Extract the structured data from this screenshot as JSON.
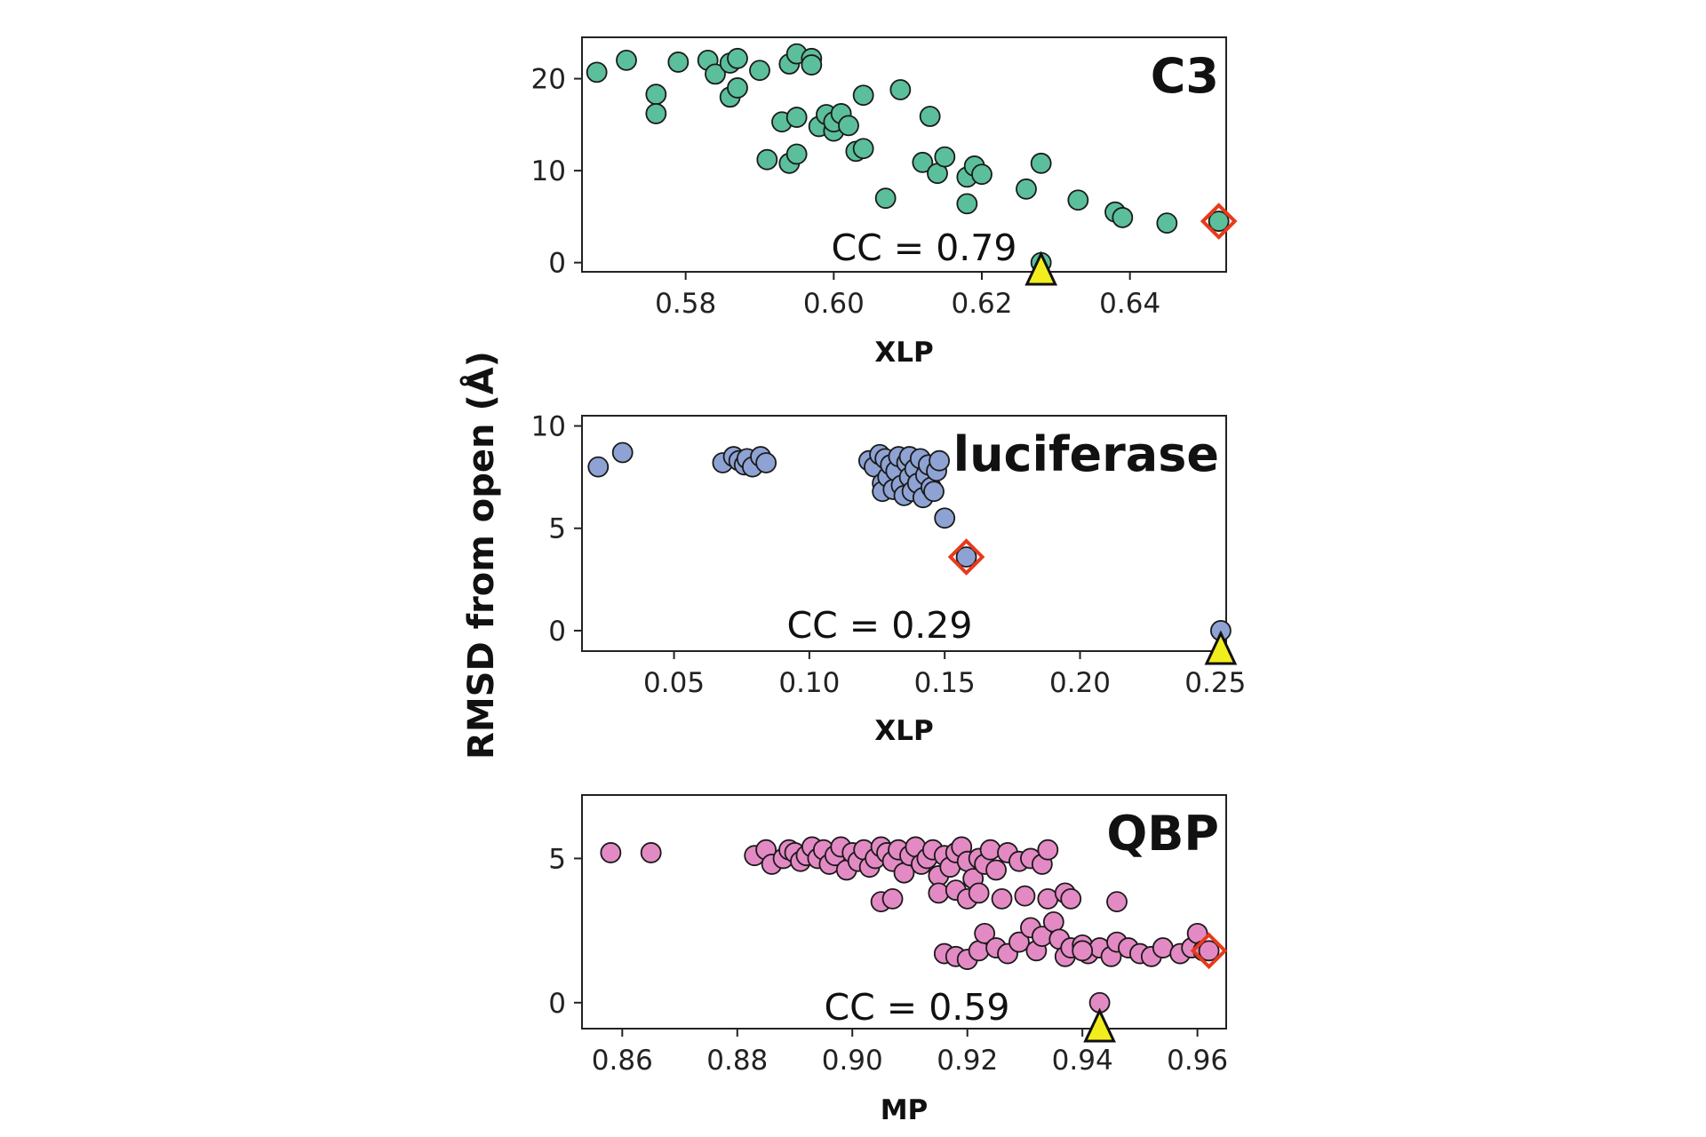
{
  "figure": {
    "ylabel": "RMSD from open (Å)",
    "colors": {
      "c3": "#5bbf9c",
      "luciferase": "#8ea3d3",
      "qbp": "#e38ac4",
      "marker_outline": "#1a1a1a",
      "diamond": "#e8391c",
      "triangle": "#f2ee1e"
    }
  },
  "chart_data": [
    {
      "type": "scatter",
      "panel_label": "C3",
      "annotation": "CC = 0.79",
      "xlabel": "XLP",
      "xlim": [
        0.566,
        0.653
      ],
      "ylim": [
        -1,
        24.5
      ],
      "xticks": [
        0.58,
        0.6,
        0.62,
        0.64
      ],
      "xtick_labels": [
        "0.58",
        "0.60",
        "0.62",
        "0.64"
      ],
      "yticks": [
        0,
        10,
        20
      ],
      "ytick_labels": [
        "0",
        "10",
        "20"
      ],
      "color": "#5bbf9c",
      "points": [
        [
          0.568,
          20.7
        ],
        [
          0.572,
          22.0
        ],
        [
          0.576,
          18.3
        ],
        [
          0.576,
          16.2
        ],
        [
          0.579,
          21.8
        ],
        [
          0.583,
          22.0
        ],
        [
          0.584,
          20.5
        ],
        [
          0.586,
          21.7
        ],
        [
          0.587,
          22.2
        ],
        [
          0.586,
          18.0
        ],
        [
          0.587,
          19.0
        ],
        [
          0.59,
          20.9
        ],
        [
          0.591,
          11.2
        ],
        [
          0.593,
          15.3
        ],
        [
          0.594,
          10.8
        ],
        [
          0.594,
          21.6
        ],
        [
          0.595,
          22.7
        ],
        [
          0.595,
          11.8
        ],
        [
          0.595,
          15.8
        ],
        [
          0.597,
          22.2
        ],
        [
          0.597,
          21.5
        ],
        [
          0.598,
          14.8
        ],
        [
          0.599,
          16.1
        ],
        [
          0.6,
          14.3
        ],
        [
          0.6,
          15.3
        ],
        [
          0.601,
          16.2
        ],
        [
          0.602,
          14.9
        ],
        [
          0.603,
          12.1
        ],
        [
          0.604,
          12.4
        ],
        [
          0.604,
          18.2
        ],
        [
          0.607,
          7.0
        ],
        [
          0.609,
          18.8
        ],
        [
          0.612,
          10.9
        ],
        [
          0.613,
          15.9
        ],
        [
          0.614,
          9.7
        ],
        [
          0.615,
          11.5
        ],
        [
          0.618,
          6.4
        ],
        [
          0.618,
          9.3
        ],
        [
          0.619,
          10.5
        ],
        [
          0.62,
          9.6
        ],
        [
          0.626,
          8.0
        ],
        [
          0.628,
          10.8
        ],
        [
          0.633,
          6.8
        ],
        [
          0.638,
          5.5
        ],
        [
          0.639,
          4.9
        ],
        [
          0.645,
          4.3
        ],
        [
          0.652,
          4.5
        ],
        [
          0.628,
          0.0
        ]
      ],
      "best_diamond": [
        0.652,
        4.5
      ],
      "reference_triangle_x": 0.628
    },
    {
      "type": "scatter",
      "panel_label": "luciferase",
      "annotation": "CC = 0.29",
      "xlabel": "XLP",
      "xlim": [
        0.016,
        0.254
      ],
      "ylim": [
        -1,
        10.5
      ],
      "xticks": [
        0.05,
        0.1,
        0.15,
        0.2,
        0.25
      ],
      "xtick_labels": [
        "0.05",
        "0.10",
        "0.15",
        "0.20",
        "0.25"
      ],
      "yticks": [
        0,
        5,
        10
      ],
      "ytick_labels": [
        "0",
        "5",
        "10"
      ],
      "color": "#8ea3d3",
      "points": [
        [
          0.022,
          8.0
        ],
        [
          0.031,
          8.7
        ],
        [
          0.068,
          8.2
        ],
        [
          0.072,
          8.5
        ],
        [
          0.074,
          8.3
        ],
        [
          0.076,
          8.1
        ],
        [
          0.077,
          8.4
        ],
        [
          0.079,
          8.0
        ],
        [
          0.082,
          8.5
        ],
        [
          0.084,
          8.2
        ],
        [
          0.122,
          8.3
        ],
        [
          0.124,
          8.0
        ],
        [
          0.126,
          8.6
        ],
        [
          0.127,
          7.2
        ],
        [
          0.127,
          6.8
        ],
        [
          0.128,
          8.4
        ],
        [
          0.129,
          7.5
        ],
        [
          0.13,
          8.1
        ],
        [
          0.131,
          6.9
        ],
        [
          0.132,
          7.8
        ],
        [
          0.133,
          8.5
        ],
        [
          0.134,
          7.1
        ],
        [
          0.135,
          6.6
        ],
        [
          0.136,
          8.2
        ],
        [
          0.137,
          7.5
        ],
        [
          0.137,
          8.5
        ],
        [
          0.138,
          6.8
        ],
        [
          0.139,
          7.9
        ],
        [
          0.14,
          7.2
        ],
        [
          0.141,
          8.4
        ],
        [
          0.142,
          6.5
        ],
        [
          0.143,
          7.6
        ],
        [
          0.144,
          8.1
        ],
        [
          0.145,
          7.0
        ],
        [
          0.146,
          6.8
        ],
        [
          0.147,
          7.8
        ],
        [
          0.148,
          8.3
        ],
        [
          0.15,
          5.5
        ],
        [
          0.158,
          3.6
        ],
        [
          0.252,
          0.0
        ]
      ],
      "best_diamond": [
        0.158,
        3.6
      ],
      "reference_triangle_x": 0.252
    },
    {
      "type": "scatter",
      "panel_label": "QBP",
      "annotation": "CC = 0.59",
      "xlabel": "MP",
      "xlim": [
        0.853,
        0.965
      ],
      "ylim": [
        -0.9,
        7.2
      ],
      "xticks": [
        0.86,
        0.88,
        0.9,
        0.92,
        0.94,
        0.96
      ],
      "xtick_labels": [
        "0.86",
        "0.88",
        "0.90",
        "0.92",
        "0.94",
        "0.96"
      ],
      "yticks": [
        0,
        5
      ],
      "ytick_labels": [
        "0",
        "5"
      ],
      "color": "#e38ac4",
      "points": [
        [
          0.858,
          5.2
        ],
        [
          0.865,
          5.2
        ],
        [
          0.883,
          5.1
        ],
        [
          0.885,
          5.3
        ],
        [
          0.886,
          4.8
        ],
        [
          0.888,
          5.0
        ],
        [
          0.889,
          5.3
        ],
        [
          0.89,
          5.2
        ],
        [
          0.891,
          4.9
        ],
        [
          0.892,
          5.1
        ],
        [
          0.893,
          5.4
        ],
        [
          0.894,
          5.0
        ],
        [
          0.895,
          5.3
        ],
        [
          0.896,
          4.8
        ],
        [
          0.897,
          5.1
        ],
        [
          0.898,
          5.4
        ],
        [
          0.899,
          4.6
        ],
        [
          0.9,
          5.2
        ],
        [
          0.901,
          4.9
        ],
        [
          0.902,
          5.3
        ],
        [
          0.903,
          4.7
        ],
        [
          0.904,
          5.0
        ],
        [
          0.905,
          5.4
        ],
        [
          0.906,
          5.2
        ],
        [
          0.907,
          4.9
        ],
        [
          0.908,
          5.3
        ],
        [
          0.909,
          4.5
        ],
        [
          0.91,
          5.1
        ],
        [
          0.911,
          5.4
        ],
        [
          0.912,
          4.8
        ],
        [
          0.913,
          5.0
        ],
        [
          0.914,
          5.3
        ],
        [
          0.915,
          4.4
        ],
        [
          0.916,
          5.1
        ],
        [
          0.917,
          4.7
        ],
        [
          0.918,
          5.2
        ],
        [
          0.919,
          5.4
        ],
        [
          0.92,
          4.9
        ],
        [
          0.921,
          4.3
        ],
        [
          0.922,
          5.0
        ],
        [
          0.923,
          4.8
        ],
        [
          0.924,
          5.3
        ],
        [
          0.925,
          4.6
        ],
        [
          0.927,
          5.2
        ],
        [
          0.929,
          4.9
        ],
        [
          0.931,
          5.0
        ],
        [
          0.933,
          4.8
        ],
        [
          0.934,
          5.3
        ],
        [
          0.905,
          3.5
        ],
        [
          0.907,
          3.6
        ],
        [
          0.915,
          3.8
        ],
        [
          0.918,
          3.9
        ],
        [
          0.92,
          3.6
        ],
        [
          0.922,
          3.8
        ],
        [
          0.926,
          3.6
        ],
        [
          0.93,
          3.7
        ],
        [
          0.934,
          3.6
        ],
        [
          0.937,
          3.8
        ],
        [
          0.938,
          3.6
        ],
        [
          0.946,
          3.5
        ],
        [
          0.916,
          1.7
        ],
        [
          0.918,
          1.6
        ],
        [
          0.92,
          1.5
        ],
        [
          0.922,
          1.8
        ],
        [
          0.923,
          2.4
        ],
        [
          0.925,
          1.9
        ],
        [
          0.927,
          1.7
        ],
        [
          0.929,
          2.1
        ],
        [
          0.931,
          2.6
        ],
        [
          0.932,
          1.8
        ],
        [
          0.933,
          2.3
        ],
        [
          0.935,
          2.8
        ],
        [
          0.936,
          2.2
        ],
        [
          0.937,
          1.6
        ],
        [
          0.938,
          1.9
        ],
        [
          0.94,
          2.0
        ],
        [
          0.941,
          1.7
        ],
        [
          0.943,
          1.9
        ],
        [
          0.945,
          1.6
        ],
        [
          0.946,
          2.1
        ],
        [
          0.948,
          1.9
        ],
        [
          0.95,
          1.7
        ],
        [
          0.952,
          1.6
        ],
        [
          0.954,
          1.9
        ],
        [
          0.957,
          1.7
        ],
        [
          0.959,
          1.9
        ],
        [
          0.96,
          2.4
        ],
        [
          0.961,
          1.8
        ],
        [
          0.94,
          1.8
        ],
        [
          0.962,
          1.8
        ],
        [
          0.943,
          0.0
        ]
      ],
      "best_diamond": [
        0.962,
        1.8
      ],
      "reference_triangle_x": 0.943
    }
  ]
}
